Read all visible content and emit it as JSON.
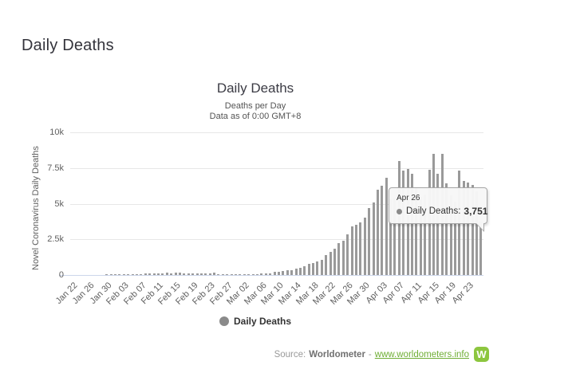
{
  "page": {
    "title": "Daily Deaths"
  },
  "chart": {
    "title": "Daily Deaths",
    "subtitle1": "Deaths per Day",
    "subtitle2": "Data as of 0:00 GMT+8",
    "y_axis_title": "Novel Coronavirus Daily Deaths",
    "legend_label": "Daily Deaths",
    "bar_color": "#9a9a9a",
    "grid_color": "#e7e7e7",
    "axis_line_color": "#ccd6eb",
    "legend_marker_color": "#8a8a8a"
  },
  "tooltip": {
    "date": "Apr 26",
    "label": "Daily Deaths:",
    "value": "3,751"
  },
  "source": {
    "prefix": "Source:",
    "name": "Worldometer",
    "separator": "-",
    "link": "www.worldometers.info",
    "logo_letter": "W",
    "logo_color": "#8dc63f",
    "link_color": "#6fae35"
  },
  "chart_data": {
    "type": "bar",
    "title": "Daily Deaths",
    "subtitle": [
      "Deaths per Day",
      "Data as of 0:00 GMT+8"
    ],
    "xlabel": "",
    "ylabel": "Novel Coronavirus Daily Deaths",
    "ylim": [
      0,
      10000
    ],
    "ytick_values": [
      0,
      2500,
      5000,
      7500,
      10000
    ],
    "ytick_labels": [
      "0",
      "2.5k",
      "5k",
      "7.5k",
      "10k"
    ],
    "grid": true,
    "legend": [
      "Daily Deaths"
    ],
    "legend_position": "bottom",
    "x_tick_labels": [
      "Jan 22",
      "Jan 26",
      "Jan 30",
      "Feb 03",
      "Feb 07",
      "Feb 11",
      "Feb 15",
      "Feb 19",
      "Feb 23",
      "Feb 27",
      "Mar 02",
      "Mar 06",
      "Mar 10",
      "Mar 14",
      "Mar 18",
      "Mar 22",
      "Mar 26",
      "Mar 30",
      "Apr 03",
      "Apr 07",
      "Apr 11",
      "Apr 15",
      "Apr 19",
      "Apr 23"
    ],
    "x_tick_step": 4,
    "x": [
      "Jan 22",
      "Jan 23",
      "Jan 24",
      "Jan 25",
      "Jan 26",
      "Jan 27",
      "Jan 28",
      "Jan 29",
      "Jan 30",
      "Jan 31",
      "Feb 01",
      "Feb 02",
      "Feb 03",
      "Feb 04",
      "Feb 05",
      "Feb 06",
      "Feb 07",
      "Feb 08",
      "Feb 09",
      "Feb 10",
      "Feb 11",
      "Feb 12",
      "Feb 13",
      "Feb 14",
      "Feb 15",
      "Feb 16",
      "Feb 17",
      "Feb 18",
      "Feb 19",
      "Feb 20",
      "Feb 21",
      "Feb 22",
      "Feb 23",
      "Feb 24",
      "Feb 25",
      "Feb 26",
      "Feb 27",
      "Feb 28",
      "Feb 29",
      "Mar 01",
      "Mar 02",
      "Mar 03",
      "Mar 04",
      "Mar 05",
      "Mar 06",
      "Mar 07",
      "Mar 08",
      "Mar 09",
      "Mar 10",
      "Mar 11",
      "Mar 12",
      "Mar 13",
      "Mar 14",
      "Mar 15",
      "Mar 16",
      "Mar 17",
      "Mar 18",
      "Mar 19",
      "Mar 20",
      "Mar 21",
      "Mar 22",
      "Mar 23",
      "Mar 24",
      "Mar 25",
      "Mar 26",
      "Mar 27",
      "Mar 28",
      "Mar 29",
      "Mar 30",
      "Mar 31",
      "Apr 01",
      "Apr 02",
      "Apr 03",
      "Apr 04",
      "Apr 05",
      "Apr 06",
      "Apr 07",
      "Apr 08",
      "Apr 09",
      "Apr 10",
      "Apr 11",
      "Apr 12",
      "Apr 13",
      "Apr 14",
      "Apr 15",
      "Apr 16",
      "Apr 17",
      "Apr 18",
      "Apr 19",
      "Apr 20",
      "Apr 21",
      "Apr 22",
      "Apr 23",
      "Apr 24",
      "Apr 25",
      "Apr 26"
    ],
    "values": [
      9,
      8,
      16,
      15,
      24,
      26,
      26,
      26,
      38,
      43,
      46,
      45,
      57,
      64,
      66,
      73,
      73,
      86,
      89,
      97,
      108,
      97,
      146,
      121,
      143,
      142,
      105,
      98,
      136,
      115,
      118,
      109,
      97,
      150,
      71,
      52,
      49,
      60,
      44,
      58,
      67,
      72,
      84,
      80,
      98,
      102,
      97,
      224,
      208,
      271,
      330,
      342,
      432,
      507,
      605,
      793,
      837,
      972,
      1086,
      1373,
      1601,
      1827,
      2229,
      2398,
      2824,
      3419,
      3510,
      3711,
      4040,
      4720,
      5110,
      5961,
      6279,
      6810,
      5317,
      5359,
      7965,
      7318,
      7411,
      7105,
      6136,
      5491,
      5617,
      7382,
      8478,
      7091,
      8506,
      6419,
      5604,
      5151,
      7308,
      6597,
      6490,
      6299,
      5852,
      3751
    ],
    "tooltip": {
      "x": "Apr 26",
      "series": "Daily Deaths",
      "value": 3751
    }
  }
}
